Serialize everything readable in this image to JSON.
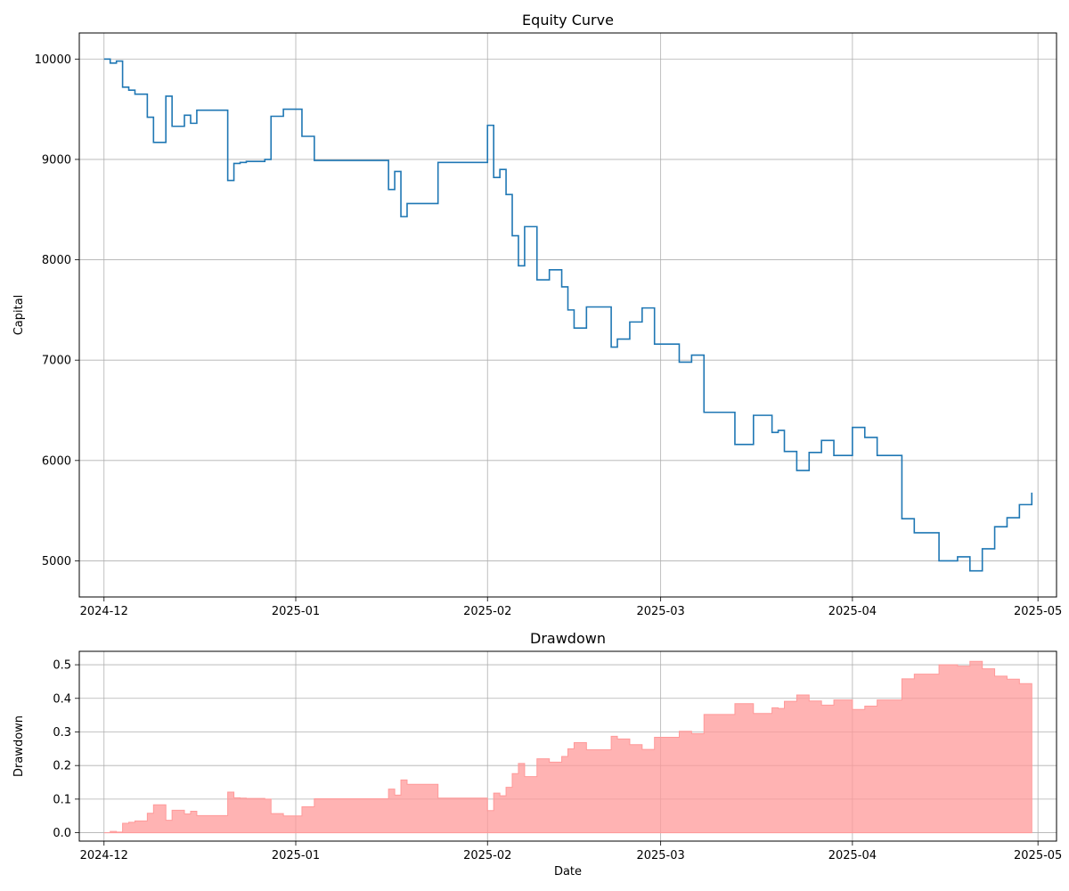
{
  "chart_data": [
    {
      "type": "line",
      "title": "Equity Curve",
      "xlabel": "",
      "ylabel": "Capital",
      "grid": true,
      "x_ticks": [
        "2024-12",
        "2025-01",
        "2025-02",
        "2025-03",
        "2025-04",
        "2025-05"
      ],
      "y_ticks": [
        "5000",
        "6000",
        "7000",
        "8000",
        "9000",
        "10000"
      ],
      "xlim": [
        "2024-11-27",
        "2025-05-04"
      ],
      "ylim": [
        4640,
        10260
      ],
      "color": "#1f77b4",
      "series": [
        {
          "x": [
            "2024-12-01",
            "2024-12-02",
            "2024-12-02",
            "2024-12-03",
            "2024-12-03",
            "2024-12-04",
            "2024-12-04",
            "2024-12-05",
            "2024-12-05",
            "2024-12-06",
            "2024-12-06",
            "2024-12-08",
            "2024-12-08",
            "2024-12-09",
            "2024-12-09",
            "2024-12-11",
            "2024-12-11",
            "2024-12-12",
            "2024-12-12",
            "2024-12-14",
            "2024-12-14",
            "2024-12-15",
            "2024-12-15",
            "2024-12-16",
            "2024-12-16",
            "2024-12-21",
            "2024-12-21",
            "2024-12-22",
            "2024-12-22",
            "2024-12-23",
            "2024-12-23",
            "2024-12-24",
            "2024-12-24",
            "2024-12-27",
            "2024-12-27",
            "2024-12-28",
            "2024-12-28",
            "2024-12-30",
            "2024-12-30",
            "2025-01-02",
            "2025-01-02",
            "2025-01-04",
            "2025-01-04",
            "2025-01-16",
            "2025-01-16",
            "2025-01-17",
            "2025-01-17",
            "2025-01-18",
            "2025-01-18",
            "2025-01-19",
            "2025-01-19",
            "2025-01-24",
            "2025-01-24",
            "2025-02-01",
            "2025-02-01",
            "2025-02-02",
            "2025-02-02",
            "2025-02-03",
            "2025-02-03",
            "2025-02-04",
            "2025-02-04",
            "2025-02-05",
            "2025-02-05",
            "2025-02-06",
            "2025-02-06",
            "2025-02-07",
            "2025-02-07",
            "2025-02-09",
            "2025-02-09",
            "2025-02-11",
            "2025-02-11",
            "2025-02-13",
            "2025-02-13",
            "2025-02-14",
            "2025-02-14",
            "2025-02-15",
            "2025-02-15",
            "2025-02-17",
            "2025-02-17",
            "2025-02-21",
            "2025-02-21",
            "2025-02-22",
            "2025-02-22",
            "2025-02-24",
            "2025-02-24",
            "2025-02-26",
            "2025-02-26",
            "2025-02-28",
            "2025-02-28",
            "2025-03-04",
            "2025-03-04",
            "2025-03-06",
            "2025-03-06",
            "2025-03-08",
            "2025-03-08",
            "2025-03-13",
            "2025-03-13",
            "2025-03-16",
            "2025-03-16",
            "2025-03-19",
            "2025-03-19",
            "2025-03-20",
            "2025-03-20",
            "2025-03-21",
            "2025-03-21",
            "2025-03-23",
            "2025-03-23",
            "2025-03-25",
            "2025-03-25",
            "2025-03-27",
            "2025-03-27",
            "2025-03-29",
            "2025-03-29",
            "2025-04-01",
            "2025-04-01",
            "2025-04-03",
            "2025-04-03",
            "2025-04-05",
            "2025-04-05",
            "2025-04-09",
            "2025-04-09",
            "2025-04-11",
            "2025-04-11",
            "2025-04-15",
            "2025-04-15",
            "2025-04-18",
            "2025-04-18",
            "2025-04-20",
            "2025-04-20",
            "2025-04-22",
            "2025-04-22",
            "2025-04-24",
            "2025-04-24",
            "2025-04-26",
            "2025-04-26",
            "2025-04-28",
            "2025-04-28",
            "2025-04-30",
            "2025-04-30"
          ],
          "y": [
            10000,
            10000,
            9960,
            9960,
            9980,
            9980,
            9720,
            9720,
            9690,
            9690,
            9650,
            9650,
            9420,
            9420,
            9170,
            9170,
            9630,
            9630,
            9330,
            9330,
            9440,
            9440,
            9360,
            9360,
            9490,
            9490,
            8790,
            8790,
            8960,
            8960,
            8970,
            8970,
            8980,
            8980,
            9000,
            9000,
            9430,
            9430,
            9500,
            9500,
            9230,
            9230,
            8990,
            8990,
            8700,
            8700,
            8880,
            8880,
            8430,
            8430,
            8560,
            8560,
            8970,
            8970,
            9340,
            9340,
            8820,
            8820,
            8900,
            8900,
            8650,
            8650,
            8240,
            8240,
            7940,
            7940,
            8330,
            8330,
            7800,
            7800,
            7900,
            7900,
            7730,
            7730,
            7500,
            7500,
            7320,
            7320,
            7530,
            7530,
            7130,
            7130,
            7210,
            7210,
            7380,
            7380,
            7520,
            7520,
            7160,
            7160,
            6980,
            6980,
            7050,
            7050,
            6480,
            6480,
            6160,
            6160,
            6450,
            6450,
            6280,
            6280,
            6300,
            6300,
            6090,
            6090,
            5900,
            5900,
            6080,
            6080,
            6200,
            6200,
            6050,
            6050,
            6330,
            6330,
            6230,
            6230,
            6050,
            6050,
            5420,
            5420,
            5280,
            5280,
            5000,
            5000,
            5040,
            5040,
            4900,
            4900,
            5120,
            5120,
            5340,
            5340,
            5430,
            5430,
            5560,
            5560,
            5680
          ]
        }
      ]
    },
    {
      "type": "area",
      "title": "Drawdown",
      "xlabel": "Date",
      "ylabel": "Drawdown",
      "grid": true,
      "x_ticks": [
        "2024-12",
        "2025-01",
        "2025-02",
        "2025-03",
        "2025-04",
        "2025-05"
      ],
      "y_ticks": [
        "0.0",
        "0.1",
        "0.2",
        "0.3",
        "0.4",
        "0.5"
      ],
      "xlim": [
        "2024-11-27",
        "2025-05-04"
      ],
      "ylim": [
        -0.025,
        0.54
      ],
      "color": "#ff9999",
      "series": [
        {
          "x": [
            "2024-12-01",
            "2024-12-02",
            "2024-12-02",
            "2024-12-03",
            "2024-12-03",
            "2024-12-04",
            "2024-12-04",
            "2024-12-05",
            "2024-12-05",
            "2024-12-06",
            "2024-12-06",
            "2024-12-08",
            "2024-12-08",
            "2024-12-09",
            "2024-12-09",
            "2024-12-11",
            "2024-12-11",
            "2024-12-12",
            "2024-12-12",
            "2024-12-14",
            "2024-12-14",
            "2024-12-15",
            "2024-12-15",
            "2024-12-16",
            "2024-12-16",
            "2024-12-21",
            "2024-12-21",
            "2024-12-22",
            "2024-12-22",
            "2024-12-23",
            "2024-12-23",
            "2024-12-24",
            "2024-12-24",
            "2024-12-27",
            "2024-12-27",
            "2024-12-28",
            "2024-12-28",
            "2024-12-30",
            "2024-12-30",
            "2025-01-02",
            "2025-01-02",
            "2025-01-04",
            "2025-01-04",
            "2025-01-16",
            "2025-01-16",
            "2025-01-17",
            "2025-01-17",
            "2025-01-18",
            "2025-01-18",
            "2025-01-19",
            "2025-01-19",
            "2025-01-24",
            "2025-01-24",
            "2025-02-01",
            "2025-02-01",
            "2025-02-02",
            "2025-02-02",
            "2025-02-03",
            "2025-02-03",
            "2025-02-04",
            "2025-02-04",
            "2025-02-05",
            "2025-02-05",
            "2025-02-06",
            "2025-02-06",
            "2025-02-07",
            "2025-02-07",
            "2025-02-09",
            "2025-02-09",
            "2025-02-11",
            "2025-02-11",
            "2025-02-13",
            "2025-02-13",
            "2025-02-14",
            "2025-02-14",
            "2025-02-15",
            "2025-02-15",
            "2025-02-17",
            "2025-02-17",
            "2025-02-21",
            "2025-02-21",
            "2025-02-22",
            "2025-02-22",
            "2025-02-24",
            "2025-02-24",
            "2025-02-26",
            "2025-02-26",
            "2025-02-28",
            "2025-02-28",
            "2025-03-04",
            "2025-03-04",
            "2025-03-06",
            "2025-03-06",
            "2025-03-08",
            "2025-03-08",
            "2025-03-13",
            "2025-03-13",
            "2025-03-16",
            "2025-03-16",
            "2025-03-19",
            "2025-03-19",
            "2025-03-20",
            "2025-03-20",
            "2025-03-21",
            "2025-03-21",
            "2025-03-23",
            "2025-03-23",
            "2025-03-25",
            "2025-03-25",
            "2025-03-27",
            "2025-03-27",
            "2025-03-29",
            "2025-03-29",
            "2025-04-01",
            "2025-04-01",
            "2025-04-03",
            "2025-04-03",
            "2025-04-05",
            "2025-04-05",
            "2025-04-09",
            "2025-04-09",
            "2025-04-11",
            "2025-04-11",
            "2025-04-15",
            "2025-04-15",
            "2025-04-18",
            "2025-04-18",
            "2025-04-20",
            "2025-04-20",
            "2025-04-22",
            "2025-04-22",
            "2025-04-24",
            "2025-04-24",
            "2025-04-26",
            "2025-04-26",
            "2025-04-28",
            "2025-04-28",
            "2025-04-30",
            "2025-04-30"
          ],
          "y": [
            0,
            0,
            0.004,
            0.004,
            0.002,
            0.002,
            0.028,
            0.028,
            0.031,
            0.031,
            0.035,
            0.035,
            0.058,
            0.058,
            0.083,
            0.083,
            0.037,
            0.037,
            0.067,
            0.067,
            0.056,
            0.056,
            0.064,
            0.064,
            0.051,
            0.051,
            0.121,
            0.121,
            0.104,
            0.104,
            0.103,
            0.103,
            0.102,
            0.102,
            0.1,
            0.1,
            0.057,
            0.057,
            0.05,
            0.05,
            0.077,
            0.077,
            0.101,
            0.101,
            0.13,
            0.13,
            0.112,
            0.112,
            0.157,
            0.157,
            0.144,
            0.144,
            0.103,
            0.103,
            0.066,
            0.066,
            0.118,
            0.118,
            0.11,
            0.11,
            0.135,
            0.135,
            0.176,
            0.176,
            0.206,
            0.206,
            0.167,
            0.167,
            0.22,
            0.22,
            0.21,
            0.21,
            0.227,
            0.227,
            0.25,
            0.25,
            0.268,
            0.268,
            0.247,
            0.247,
            0.287,
            0.287,
            0.279,
            0.279,
            0.262,
            0.262,
            0.248,
            0.248,
            0.284,
            0.284,
            0.302,
            0.302,
            0.295,
            0.295,
            0.352,
            0.352,
            0.384,
            0.384,
            0.355,
            0.355,
            0.372,
            0.372,
            0.37,
            0.37,
            0.391,
            0.391,
            0.41,
            0.41,
            0.392,
            0.392,
            0.38,
            0.38,
            0.395,
            0.395,
            0.367,
            0.367,
            0.377,
            0.377,
            0.395,
            0.395,
            0.458,
            0.458,
            0.472,
            0.472,
            0.5,
            0.5,
            0.496,
            0.496,
            0.51,
            0.51,
            0.488,
            0.488,
            0.466,
            0.466,
            0.457,
            0.457,
            0.444,
            0.444,
            0.432
          ]
        }
      ]
    }
  ]
}
